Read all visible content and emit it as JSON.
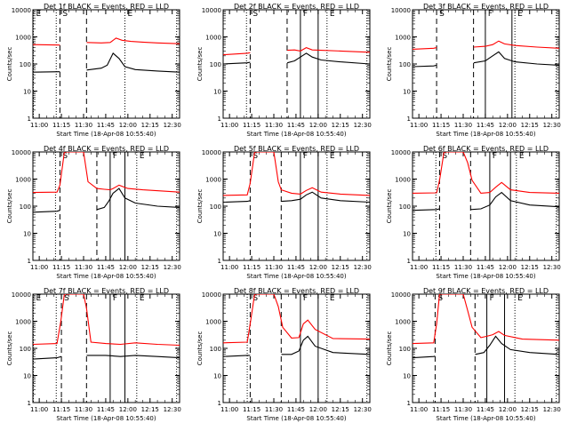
{
  "figure": {
    "xlabel": "Start Time (18-Apr-08 10:55:40)",
    "ylabel": "Counts/sec",
    "xticks": [
      {
        "t": 0,
        "label": "11:00"
      },
      {
        "t": 15,
        "label": "11:15"
      },
      {
        "t": 30,
        "label": "11:30"
      },
      {
        "t": 45,
        "label": "11:45"
      },
      {
        "t": 60,
        "label": "12:00"
      },
      {
        "t": 75,
        "label": "12:15"
      },
      {
        "t": 90,
        "label": "12:30"
      }
    ],
    "yticks": [
      {
        "v": 1,
        "label": "1"
      },
      {
        "v": 10,
        "label": "10"
      },
      {
        "v": 100,
        "label": "100"
      },
      {
        "v": 1000,
        "label": "1000"
      },
      {
        "v": 10000,
        "label": "10000"
      }
    ],
    "colors": {
      "events": "#000000",
      "lld": "#ff0000"
    },
    "marker_labels": {
      "E": "E",
      "S": "S",
      "F": "F"
    }
  },
  "chart_data": [
    {
      "type": "line",
      "title": "Det 1f BLACK = Events, RED = LLD",
      "x_unit": "minutes after 11:00",
      "xlim": [
        -4.3,
        95
      ],
      "ylim": [
        1,
        10000
      ],
      "log_y": true,
      "markers": [
        {
          "t": -4,
          "style": "dotted",
          "label": "E"
        },
        {
          "t": 11.5,
          "style": "dotted"
        },
        {
          "t": 14,
          "style": "dashed",
          "label": "S"
        },
        {
          "t": 32,
          "style": "dashed"
        },
        {
          "t": 58,
          "style": "dotted",
          "label": "E"
        },
        {
          "t": 93,
          "style": "dotted"
        }
      ],
      "series": [
        {
          "name": "LLD",
          "x": [
            -4.3,
            14,
            14.1,
            32,
            32.1,
            42,
            48,
            52,
            56,
            62,
            70,
            80,
            95
          ],
          "values": [
            520,
            500,
            0,
            0,
            620,
            600,
            620,
            900,
            750,
            680,
            640,
            600,
            560
          ]
        },
        {
          "name": "Events",
          "x": [
            -4.3,
            14,
            14.1,
            32,
            32.1,
            42,
            46,
            50,
            54,
            58,
            65,
            80,
            95
          ],
          "values": [
            50,
            52,
            0,
            0,
            60,
            70,
            90,
            250,
            160,
            80,
            62,
            55,
            50
          ]
        }
      ]
    },
    {
      "type": "line",
      "title": "Det 2f BLACK = Events, RED = LLD",
      "x_unit": "minutes after 11:00",
      "xlim": [
        -4.3,
        95
      ],
      "ylim": [
        1,
        10000
      ],
      "log_y": true,
      "markers": [
        {
          "t": 11.5,
          "style": "dotted"
        },
        {
          "t": 14,
          "style": "dashed",
          "label": "S"
        },
        {
          "t": 39,
          "style": "dashed"
        },
        {
          "t": 48,
          "style": "solid",
          "label": "F"
        },
        {
          "t": 60,
          "style": "solid"
        },
        {
          "t": 66,
          "style": "dotted",
          "label": "E"
        },
        {
          "t": 93,
          "style": "dotted"
        }
      ],
      "series": [
        {
          "name": "LLD",
          "x": [
            -4.3,
            12,
            14,
            14.1,
            39,
            39.1,
            44,
            48,
            52,
            56,
            62,
            75,
            95
          ],
          "values": [
            220,
            250,
            260,
            0,
            0,
            320,
            330,
            300,
            400,
            330,
            320,
            300,
            270
          ]
        },
        {
          "name": "Events",
          "x": [
            -4.3,
            12,
            14,
            14.1,
            39,
            39.1,
            44,
            48,
            52,
            56,
            62,
            75,
            95
          ],
          "values": [
            100,
            110,
            115,
            0,
            0,
            110,
            130,
            180,
            250,
            180,
            140,
            120,
            100
          ]
        }
      ]
    },
    {
      "type": "line",
      "title": "Det 3f BLACK = Events, RED = LLD",
      "x_unit": "minutes after 11:00",
      "xlim": [
        -4.3,
        95
      ],
      "ylim": [
        1,
        10000
      ],
      "log_y": true,
      "markers": [
        {
          "t": 12,
          "style": "dashed",
          "label": "S"
        },
        {
          "t": 37,
          "style": "dashed"
        },
        {
          "t": 45,
          "style": "solid",
          "label": "F"
        },
        {
          "t": 63,
          "style": "solid"
        },
        {
          "t": 65,
          "style": "dotted",
          "label": "E"
        },
        {
          "t": 93,
          "style": "dotted"
        }
      ],
      "series": [
        {
          "name": "LLD",
          "x": [
            -4.3,
            10,
            12,
            12.1,
            37,
            37.1,
            45,
            50,
            54,
            58,
            65,
            80,
            95
          ],
          "values": [
            350,
            380,
            400,
            0,
            0,
            420,
            450,
            520,
            700,
            550,
            480,
            420,
            380
          ]
        },
        {
          "name": "Events",
          "x": [
            -4.3,
            10,
            12,
            12.1,
            37,
            37.1,
            45,
            50,
            54,
            58,
            65,
            80,
            95
          ],
          "values": [
            80,
            85,
            90,
            0,
            0,
            110,
            130,
            200,
            280,
            160,
            120,
            100,
            90
          ]
        }
      ]
    },
    {
      "type": "line",
      "title": "Det 4f BLACK = Events, RED = LLD",
      "x_unit": "minutes after 11:00",
      "xlim": [
        -4.3,
        95
      ],
      "ylim": [
        1,
        10000
      ],
      "log_y": true,
      "markers": [
        {
          "t": 11,
          "style": "dotted"
        },
        {
          "t": 14,
          "style": "dashed",
          "label": "S"
        },
        {
          "t": 39,
          "style": "dashed"
        },
        {
          "t": 48,
          "style": "solid",
          "label": "F"
        },
        {
          "t": 58,
          "style": "solid"
        },
        {
          "t": 66,
          "style": "dotted",
          "label": "E"
        },
        {
          "t": 93,
          "style": "dotted"
        }
      ],
      "series": [
        {
          "name": "LLD",
          "x": [
            -4.3,
            12,
            14,
            17,
            30,
            33,
            39,
            44,
            48,
            50,
            54,
            60,
            70,
            95
          ],
          "values": [
            320,
            330,
            600,
            10000,
            10000,
            800,
            450,
            420,
            400,
            450,
            600,
            450,
            400,
            330
          ]
        },
        {
          "name": "Events",
          "x": [
            -4.3,
            12,
            14,
            14.1,
            39,
            39.1,
            44,
            47,
            50,
            54,
            58,
            65,
            80,
            95
          ],
          "values": [
            60,
            65,
            70,
            0,
            0,
            75,
            90,
            150,
            300,
            450,
            200,
            130,
            100,
            90
          ]
        }
      ]
    },
    {
      "type": "line",
      "title": "Det 5f BLACK = Events, RED = LLD",
      "x_unit": "minutes after 11:00",
      "xlim": [
        -4.3,
        95
      ],
      "ylim": [
        1,
        10000
      ],
      "log_y": true,
      "markers": [
        {
          "t": 14,
          "style": "dashed",
          "label": "S"
        },
        {
          "t": 35,
          "style": "dashed"
        },
        {
          "t": 48,
          "style": "solid",
          "label": "F"
        },
        {
          "t": 60,
          "style": "solid"
        },
        {
          "t": 66,
          "style": "dotted",
          "label": "E"
        },
        {
          "t": 93,
          "style": "dotted"
        }
      ],
      "series": [
        {
          "name": "LLD",
          "x": [
            -4.3,
            12,
            14,
            17,
            30,
            33,
            35,
            42,
            48,
            52,
            56,
            62,
            75,
            95
          ],
          "values": [
            250,
            260,
            700,
            10000,
            10000,
            800,
            400,
            300,
            280,
            380,
            480,
            330,
            280,
            250
          ]
        },
        {
          "name": "Events",
          "x": [
            -4.3,
            12,
            14,
            14.1,
            35,
            35.1,
            42,
            48,
            52,
            56,
            62,
            75,
            95
          ],
          "values": [
            140,
            150,
            160,
            0,
            0,
            150,
            160,
            180,
            260,
            330,
            200,
            160,
            140
          ]
        }
      ]
    },
    {
      "type": "line",
      "title": "Det 6f BLACK = Events, RED = LLD",
      "x_unit": "minutes after 11:00",
      "xlim": [
        -4.3,
        95
      ],
      "ylim": [
        1,
        10000
      ],
      "log_y": true,
      "markers": [
        {
          "t": 11.5,
          "style": "dotted"
        },
        {
          "t": 14,
          "style": "dashed",
          "label": "S"
        },
        {
          "t": 35,
          "style": "dashed"
        },
        {
          "t": 48,
          "style": "solid",
          "label": "F"
        },
        {
          "t": 62,
          "style": "solid"
        },
        {
          "t": 66,
          "style": "dotted",
          "label": "E"
        },
        {
          "t": 93,
          "style": "dotted"
        }
      ],
      "series": [
        {
          "name": "LLD",
          "x": [
            -4.3,
            12,
            14,
            17,
            30,
            33,
            36,
            42,
            48,
            52,
            56,
            62,
            75,
            95
          ],
          "values": [
            300,
            310,
            900,
            10000,
            10000,
            4000,
            900,
            300,
            320,
            500,
            750,
            400,
            320,
            300
          ]
        },
        {
          "name": "Events",
          "x": [
            -4.3,
            12,
            14,
            14.1,
            35,
            35.1,
            42,
            48,
            52,
            56,
            62,
            75,
            95
          ],
          "values": [
            70,
            75,
            80,
            0,
            0,
            75,
            80,
            110,
            220,
            320,
            160,
            110,
            95
          ]
        }
      ]
    },
    {
      "type": "line",
      "title": "Det 7f BLACK = Events, RED = LLD",
      "x_unit": "minutes after 11:00",
      "xlim": [
        -4.3,
        95
      ],
      "ylim": [
        1,
        10000
      ],
      "log_y": true,
      "markers": [
        {
          "t": -4,
          "style": "dotted",
          "label": "E"
        },
        {
          "t": 11.5,
          "style": "dotted"
        },
        {
          "t": 15,
          "style": "dashed",
          "label": "S"
        },
        {
          "t": 32,
          "style": "dashed"
        },
        {
          "t": 48,
          "style": "solid",
          "label": "F"
        },
        {
          "t": 58,
          "style": "solid"
        },
        {
          "t": 66,
          "style": "dotted",
          "label": "E"
        },
        {
          "t": 93,
          "style": "dotted"
        }
      ],
      "series": [
        {
          "name": "LLD",
          "x": [
            -4.3,
            12,
            14.5,
            17,
            30,
            32,
            35,
            45,
            55,
            65,
            80,
            95
          ],
          "values": [
            140,
            150,
            900,
            10000,
            10000,
            3000,
            170,
            150,
            140,
            160,
            140,
            130
          ]
        },
        {
          "name": "Events",
          "x": [
            -4.3,
            12,
            15,
            15.1,
            32,
            32.1,
            45,
            55,
            65,
            80,
            95
          ],
          "values": [
            40,
            45,
            50,
            0,
            0,
            55,
            55,
            50,
            55,
            50,
            45
          ]
        }
      ]
    },
    {
      "type": "line",
      "title": "Det 8f BLACK = Events, RED = LLD",
      "x_unit": "minutes after 11:00",
      "xlim": [
        -4.3,
        95
      ],
      "ylim": [
        1,
        10000
      ],
      "log_y": true,
      "markers": [
        {
          "t": 12,
          "style": "dotted"
        },
        {
          "t": 14,
          "style": "dashed",
          "label": "S"
        },
        {
          "t": 35,
          "style": "dashed"
        },
        {
          "t": 48,
          "style": "solid",
          "label": "F"
        },
        {
          "t": 60,
          "style": "solid"
        },
        {
          "t": 66,
          "style": "dotted",
          "label": "E"
        },
        {
          "t": 93,
          "style": "dotted"
        }
      ],
      "series": [
        {
          "name": "LLD",
          "x": [
            -4.3,
            12,
            14,
            17,
            30,
            33,
            36,
            42,
            47,
            50,
            53,
            58,
            70,
            95
          ],
          "values": [
            160,
            170,
            800,
            10000,
            10000,
            3500,
            600,
            240,
            250,
            800,
            1100,
            500,
            230,
            220
          ]
        },
        {
          "name": "Events",
          "x": [
            -4.3,
            12,
            14,
            14.1,
            35,
            35.1,
            42,
            47,
            50,
            53,
            58,
            70,
            95
          ],
          "values": [
            50,
            55,
            55,
            0,
            0,
            60,
            60,
            80,
            200,
            280,
            120,
            70,
            60
          ]
        }
      ]
    },
    {
      "type": "line",
      "title": "Det 9f BLACK = Events, RED = LLD",
      "x_unit": "minutes after 11:00",
      "xlim": [
        -4.3,
        95
      ],
      "ylim": [
        1,
        10000
      ],
      "log_y": true,
      "markers": [
        {
          "t": 11,
          "style": "dashed",
          "label": "S"
        },
        {
          "t": 38,
          "style": "dashed"
        },
        {
          "t": 46,
          "style": "solid",
          "label": "F"
        },
        {
          "t": 58,
          "style": "solid"
        },
        {
          "t": 65,
          "style": "dotted",
          "label": "E"
        },
        {
          "t": 93,
          "style": "dotted"
        }
      ],
      "series": [
        {
          "name": "LLD",
          "x": [
            -4.3,
            10,
            12,
            14,
            30,
            33,
            36,
            42,
            46,
            50,
            54,
            58,
            70,
            95
          ],
          "values": [
            150,
            160,
            800,
            10000,
            10000,
            2500,
            600,
            250,
            280,
            320,
            420,
            300,
            220,
            200
          ]
        },
        {
          "name": "Events",
          "x": [
            -4.3,
            10,
            11,
            11.1,
            38,
            38.1,
            44,
            48,
            52,
            56,
            62,
            75,
            95
          ],
          "values": [
            45,
            50,
            52,
            0,
            0,
            60,
            70,
            130,
            280,
            150,
            90,
            70,
            60
          ]
        }
      ]
    }
  ]
}
